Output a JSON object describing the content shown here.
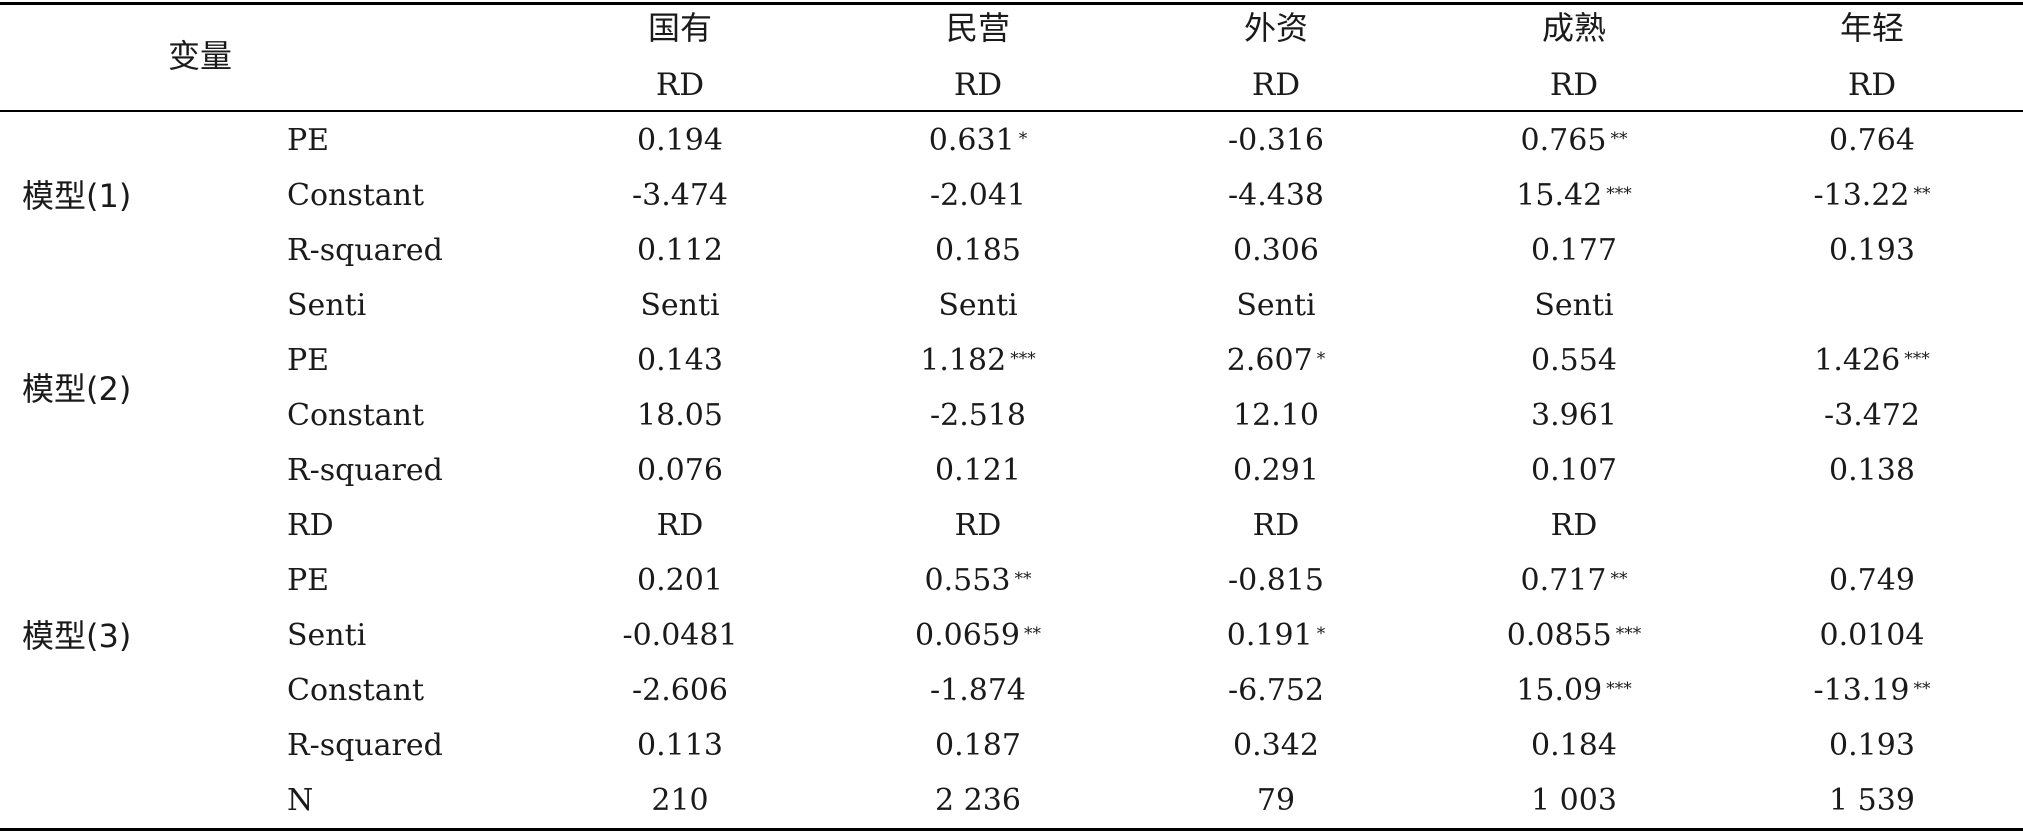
{
  "header": {
    "var_label": "变量",
    "groups": [
      "国有",
      "民营",
      "外资",
      "成熟",
      "年轻"
    ],
    "dep_vars": [
      "RD",
      "RD",
      "RD",
      "RD",
      "RD"
    ]
  },
  "models": [
    {
      "label": "模型(1)",
      "rows": [
        {
          "var": "PE",
          "vals": [
            {
              "v": "0.194",
              "s": ""
            },
            {
              "v": "0.631",
              "s": "*"
            },
            {
              "v": "-0.316",
              "s": ""
            },
            {
              "v": "0.765",
              "s": "**"
            },
            {
              "v": "0.764",
              "s": ""
            }
          ]
        },
        {
          "var": "Constant",
          "vals": [
            {
              "v": "-3.474",
              "s": ""
            },
            {
              "v": "-2.041",
              "s": ""
            },
            {
              "v": "-4.438",
              "s": ""
            },
            {
              "v": "15.42",
              "s": "***"
            },
            {
              "v": "-13.22",
              "s": "**"
            }
          ]
        },
        {
          "var": "R-squared",
          "vals": [
            {
              "v": "0.112",
              "s": ""
            },
            {
              "v": "0.185",
              "s": ""
            },
            {
              "v": "0.306",
              "s": ""
            },
            {
              "v": "0.177",
              "s": ""
            },
            {
              "v": "0.193",
              "s": ""
            }
          ]
        }
      ]
    },
    {
      "label": "模型(2)",
      "rows": [
        {
          "var": "Senti",
          "vals": [
            {
              "v": "Senti",
              "s": ""
            },
            {
              "v": "Senti",
              "s": ""
            },
            {
              "v": "Senti",
              "s": ""
            },
            {
              "v": "Senti",
              "s": ""
            },
            {
              "v": "",
              "s": ""
            }
          ]
        },
        {
          "var": "PE",
          "vals": [
            {
              "v": "0.143",
              "s": ""
            },
            {
              "v": "1.182",
              "s": "***"
            },
            {
              "v": "2.607",
              "s": "*"
            },
            {
              "v": "0.554",
              "s": ""
            },
            {
              "v": "1.426",
              "s": "***"
            }
          ]
        },
        {
          "var": "Constant",
          "vals": [
            {
              "v": "18.05",
              "s": ""
            },
            {
              "v": "-2.518",
              "s": ""
            },
            {
              "v": "12.10",
              "s": ""
            },
            {
              "v": "3.961",
              "s": ""
            },
            {
              "v": "-3.472",
              "s": ""
            }
          ]
        },
        {
          "var": "R-squared",
          "vals": [
            {
              "v": "0.076",
              "s": ""
            },
            {
              "v": "0.121",
              "s": ""
            },
            {
              "v": "0.291",
              "s": ""
            },
            {
              "v": "0.107",
              "s": ""
            },
            {
              "v": "0.138",
              "s": ""
            }
          ]
        }
      ]
    },
    {
      "label": "模型(3)",
      "rows": [
        {
          "var": "RD",
          "vals": [
            {
              "v": "RD",
              "s": ""
            },
            {
              "v": "RD",
              "s": ""
            },
            {
              "v": "RD",
              "s": ""
            },
            {
              "v": "RD",
              "s": ""
            },
            {
              "v": "",
              "s": ""
            }
          ]
        },
        {
          "var": "PE",
          "vals": [
            {
              "v": "0.201",
              "s": ""
            },
            {
              "v": "0.553",
              "s": "**"
            },
            {
              "v": "-0.815",
              "s": ""
            },
            {
              "v": "0.717",
              "s": "**"
            },
            {
              "v": "0.749",
              "s": ""
            }
          ]
        },
        {
          "var": "Senti",
          "vals": [
            {
              "v": "-0.0481",
              "s": ""
            },
            {
              "v": "0.0659",
              "s": "**"
            },
            {
              "v": "0.191",
              "s": "*"
            },
            {
              "v": "0.0855",
              "s": "***"
            },
            {
              "v": "0.0104",
              "s": ""
            }
          ]
        },
        {
          "var": "Constant",
          "vals": [
            {
              "v": "-2.606",
              "s": ""
            },
            {
              "v": "-1.874",
              "s": ""
            },
            {
              "v": "-6.752",
              "s": ""
            },
            {
              "v": "15.09",
              "s": "***"
            },
            {
              "v": "-13.19",
              "s": "**"
            }
          ]
        },
        {
          "var": "R-squared",
          "vals": [
            {
              "v": "0.113",
              "s": ""
            },
            {
              "v": "0.187",
              "s": ""
            },
            {
              "v": "0.342",
              "s": ""
            },
            {
              "v": "0.184",
              "s": ""
            },
            {
              "v": "0.193",
              "s": ""
            }
          ]
        }
      ]
    }
  ],
  "n_row": {
    "var": "N",
    "vals": [
      "210",
      "2 236",
      "79",
      "1 003",
      "1 539"
    ]
  }
}
